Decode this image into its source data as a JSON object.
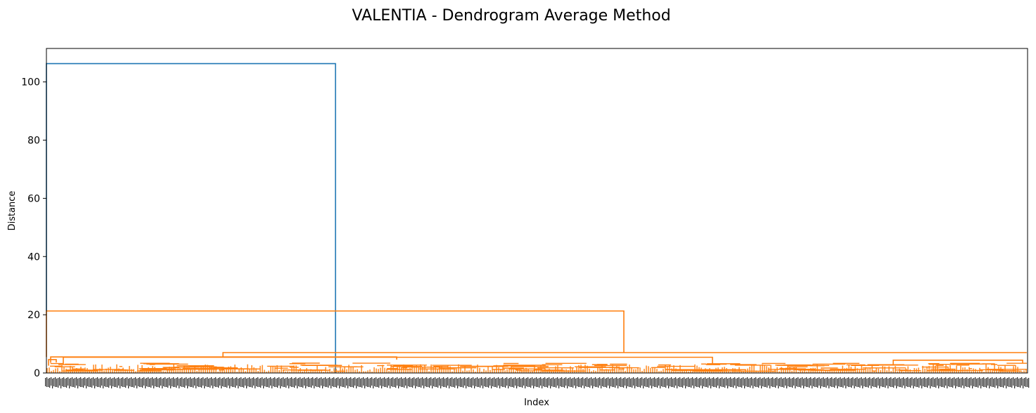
{
  "chart_data": {
    "type": "dendrogram",
    "title": "VALENTIA - Dendrogram Average Method",
    "xlabel": "Index",
    "ylabel": "Distance",
    "ylim": [
      0,
      111.5
    ],
    "yticks": [
      0,
      20,
      40,
      60,
      80,
      100
    ],
    "leaf_labels_legible": false,
    "colors": {
      "top_link": "#1f77b4",
      "cluster": "#ff7f0e",
      "axis": "#000000"
    },
    "links": [
      {
        "name": "root-link",
        "height": 106.3,
        "child_heights": [
          21.3,
          0.0
        ],
        "color": "#1f77b4"
      },
      {
        "name": "merge-link-21",
        "height": 21.3,
        "child_heights": [
          5.5,
          7.0
        ],
        "color": "#ff7f0e"
      },
      {
        "name": "merge-link-7",
        "height": 7.0,
        "child_heights": [
          5.4,
          6.8
        ],
        "color": "#ff7f0e"
      },
      {
        "name": "merge-link-5a",
        "height": 5.5,
        "child_heights": [
          3.5,
          4.6
        ],
        "color": "#ff7f0e"
      },
      {
        "name": "merge-link-5b",
        "height": 5.4,
        "child_heights": [
          3.0,
          2.9
        ],
        "color": "#ff7f0e"
      },
      {
        "name": "merge-link-4",
        "height": 4.6,
        "child_heights": [
          2.5,
          3.6
        ],
        "color": "#ff7f0e"
      },
      {
        "name": "merge-link-4b",
        "height": 4.4,
        "child_heights": [
          2.9,
          3.4
        ],
        "color": "#ff7f0e"
      }
    ]
  }
}
